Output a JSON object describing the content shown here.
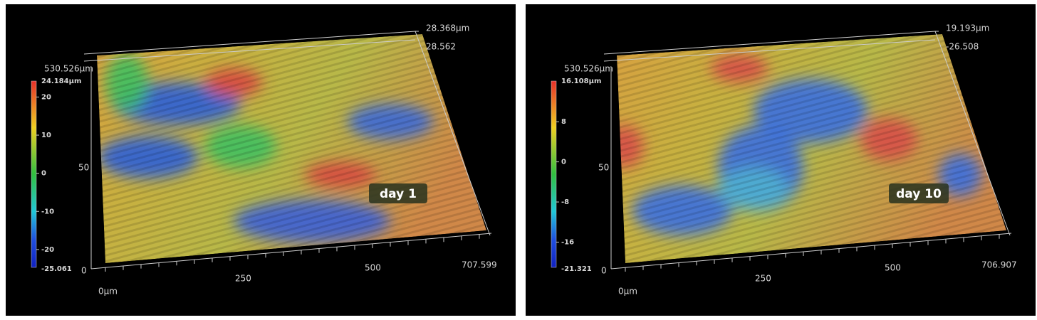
{
  "panels": [
    {
      "corner_labels": [
        "28.368µm",
        "28.562"
      ],
      "depth_label": "530.526µm",
      "scale": {
        "max": "24.184µm",
        "ticks": [
          20,
          10,
          0,
          -10,
          -20
        ],
        "min": "-25.061"
      },
      "side_label": "50",
      "origin_label": "0",
      "x_labels": [
        "0µm",
        "250",
        "500",
        "707.599"
      ],
      "tag": "day 1"
    },
    {
      "corner_labels": [
        "19.193µm",
        "-26.508"
      ],
      "depth_label": "530.526µm",
      "scale": {
        "max": "16.108µm",
        "ticks": [
          8,
          0,
          -8,
          -16
        ],
        "min": "-21.321"
      },
      "side_label": "50",
      "origin_label": "0",
      "x_labels": [
        "0µm",
        "250",
        "500",
        "706.907"
      ],
      "tag": "day 10"
    }
  ]
}
